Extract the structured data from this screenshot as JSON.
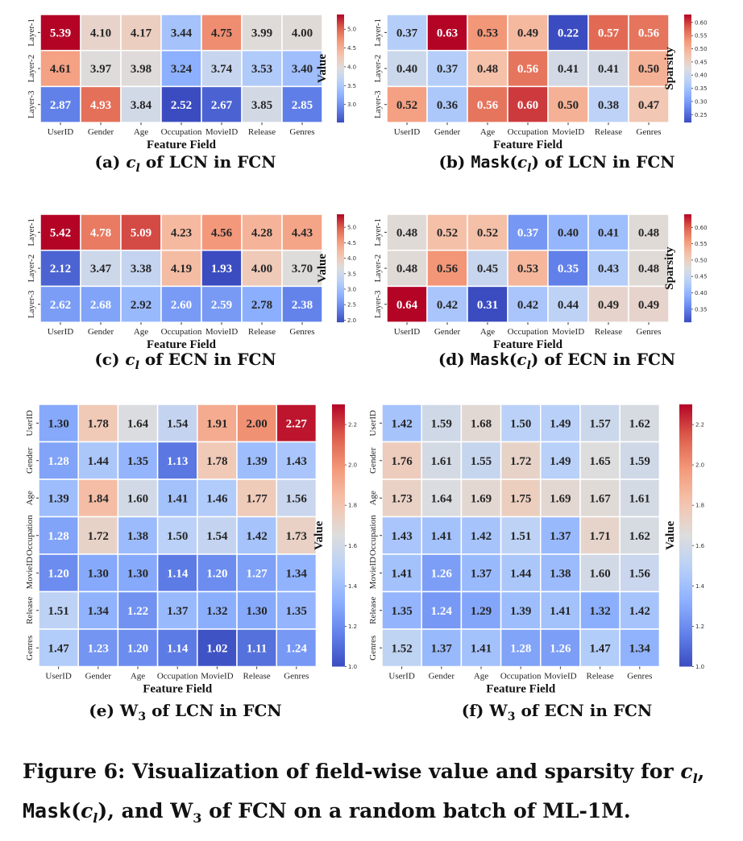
{
  "chart_data": [
    {
      "id": "a",
      "type": "heatmap",
      "caption": {
        "label": "(a)",
        "symbol": "c",
        "subscript": "l",
        "text": "of LCN in FCN"
      },
      "xlabel": "Feature Field",
      "ylabel": "",
      "colorbar_label": "Value",
      "colormap": "coolwarm",
      "vmin": 2.52,
      "vmax": 5.39,
      "colorbar_ticks": [
        "3.0",
        "3.5",
        "4.0",
        "4.5",
        "5.0"
      ],
      "x_categories": [
        "UserID",
        "Gender",
        "Age",
        "Occupation",
        "MovieID",
        "Release",
        "Genres"
      ],
      "y_categories": [
        "Layer-1",
        "Layer-2",
        "Layer-3"
      ],
      "values": [
        [
          5.39,
          4.1,
          4.17,
          3.44,
          4.75,
          3.99,
          4.0
        ],
        [
          4.61,
          3.97,
          3.98,
          3.24,
          3.74,
          3.53,
          3.4
        ],
        [
          2.87,
          4.93,
          3.84,
          2.52,
          2.67,
          3.85,
          2.85
        ]
      ]
    },
    {
      "id": "b",
      "type": "heatmap",
      "caption": {
        "label": "(b)",
        "func": "Mask",
        "symbol": "c",
        "subscript": "l",
        "text": "of LCN in FCN"
      },
      "xlabel": "Feature Field",
      "ylabel": "",
      "colorbar_label": "Sparsity",
      "colormap": "coolwarm",
      "vmin": 0.22,
      "vmax": 0.63,
      "colorbar_ticks": [
        "0.25",
        "0.30",
        "0.35",
        "0.40",
        "0.45",
        "0.50",
        "0.55",
        "0.60"
      ],
      "x_categories": [
        "UserID",
        "Gender",
        "Age",
        "Occupation",
        "MovieID",
        "Release",
        "Genres"
      ],
      "y_categories": [
        "Layer-1",
        "Layer-2",
        "Layer-3"
      ],
      "values": [
        [
          0.37,
          0.63,
          0.53,
          0.49,
          0.22,
          0.57,
          0.56
        ],
        [
          0.4,
          0.37,
          0.48,
          0.56,
          0.41,
          0.41,
          0.5
        ],
        [
          0.52,
          0.36,
          0.56,
          0.6,
          0.5,
          0.38,
          0.47
        ]
      ]
    },
    {
      "id": "c",
      "type": "heatmap",
      "caption": {
        "label": "(c)",
        "symbol": "c",
        "subscript": "l",
        "text": "of ECN in FCN"
      },
      "xlabel": "Feature Field",
      "ylabel": "",
      "colorbar_label": "Value",
      "colormap": "coolwarm",
      "vmin": 1.93,
      "vmax": 5.42,
      "colorbar_ticks": [
        "2.0",
        "2.5",
        "3.0",
        "3.5",
        "4.0",
        "4.5",
        "5.0"
      ],
      "x_categories": [
        "UserID",
        "Gender",
        "Age",
        "Occupation",
        "MovieID",
        "Release",
        "Genres"
      ],
      "y_categories": [
        "Layer-1",
        "Layer-2",
        "Layer-3"
      ],
      "values": [
        [
          5.42,
          4.78,
          5.09,
          4.23,
          4.56,
          4.28,
          4.43
        ],
        [
          2.12,
          3.47,
          3.38,
          4.19,
          1.93,
          4.0,
          3.7
        ],
        [
          2.62,
          2.68,
          2.92,
          2.6,
          2.59,
          2.78,
          2.38
        ]
      ]
    },
    {
      "id": "d",
      "type": "heatmap",
      "caption": {
        "label": "(d)",
        "func": "Mask",
        "symbol": "c",
        "subscript": "l",
        "text": "of ECN in FCN"
      },
      "xlabel": "Feature Field",
      "ylabel": "",
      "colorbar_label": "Sparsity",
      "colormap": "coolwarm",
      "vmin": 0.31,
      "vmax": 0.64,
      "colorbar_ticks": [
        "0.35",
        "0.40",
        "0.45",
        "0.50",
        "0.55",
        "0.60"
      ],
      "x_categories": [
        "UserID",
        "Gender",
        "Age",
        "Occupation",
        "MovieID",
        "Release",
        "Genres"
      ],
      "y_categories": [
        "Layer-1",
        "Layer-2",
        "Layer-3"
      ],
      "values": [
        [
          0.48,
          0.52,
          0.52,
          0.37,
          0.4,
          0.41,
          0.48
        ],
        [
          0.48,
          0.56,
          0.45,
          0.53,
          0.35,
          0.43,
          0.48
        ],
        [
          0.64,
          0.42,
          0.31,
          0.42,
          0.44,
          0.49,
          0.49
        ]
      ]
    },
    {
      "id": "e",
      "type": "heatmap",
      "caption": {
        "label": "(e)",
        "symbol": "W",
        "subscript": "3",
        "text": "of LCN in FCN"
      },
      "xlabel": "Feature Field",
      "ylabel": "",
      "colorbar_label": "Value",
      "colormap": "coolwarm",
      "vmin": 1.0,
      "vmax": 2.3,
      "colorbar_ticks": [
        "1.0",
        "1.2",
        "1.4",
        "1.6",
        "1.8",
        "2.0",
        "2.2"
      ],
      "x_categories": [
        "UserID",
        "Gender",
        "Age",
        "Occupation",
        "MovieID",
        "Release",
        "Genres"
      ],
      "y_categories": [
        "UserID",
        "Gender",
        "Age",
        "Occupation",
        "MovieID",
        "Release",
        "Genres"
      ],
      "values": [
        [
          1.3,
          1.78,
          1.64,
          1.54,
          1.91,
          2.0,
          2.27
        ],
        [
          1.28,
          1.44,
          1.35,
          1.13,
          1.78,
          1.39,
          1.43
        ],
        [
          1.39,
          1.84,
          1.6,
          1.41,
          1.46,
          1.77,
          1.56
        ],
        [
          1.28,
          1.72,
          1.38,
          1.5,
          1.54,
          1.42,
          1.73
        ],
        [
          1.2,
          1.3,
          1.3,
          1.14,
          1.2,
          1.27,
          1.34
        ],
        [
          1.51,
          1.34,
          1.22,
          1.37,
          1.32,
          1.3,
          1.35
        ],
        [
          1.47,
          1.23,
          1.2,
          1.14,
          1.02,
          1.11,
          1.24
        ]
      ]
    },
    {
      "id": "f",
      "type": "heatmap",
      "caption": {
        "label": "(f)",
        "symbol": "W",
        "subscript": "3",
        "text": "of ECN in FCN"
      },
      "xlabel": "Feature Field",
      "ylabel": "",
      "colorbar_label": "Value",
      "colormap": "coolwarm",
      "vmin": 1.0,
      "vmax": 2.3,
      "colorbar_ticks": [
        "1.0",
        "1.2",
        "1.4",
        "1.6",
        "1.8",
        "2.0",
        "2.2"
      ],
      "x_categories": [
        "UserID",
        "Gender",
        "Age",
        "Occupation",
        "MovieID",
        "Release",
        "Genres"
      ],
      "y_categories": [
        "UserID",
        "Gender",
        "Age",
        "Occupation",
        "MovieID",
        "Release",
        "Genres"
      ],
      "values": [
        [
          1.42,
          1.59,
          1.68,
          1.5,
          1.49,
          1.57,
          1.62
        ],
        [
          1.76,
          1.61,
          1.55,
          1.72,
          1.49,
          1.65,
          1.59
        ],
        [
          1.73,
          1.64,
          1.69,
          1.75,
          1.69,
          1.67,
          1.61
        ],
        [
          1.43,
          1.41,
          1.42,
          1.51,
          1.37,
          1.71,
          1.62
        ],
        [
          1.41,
          1.26,
          1.37,
          1.44,
          1.38,
          1.6,
          1.56
        ],
        [
          1.35,
          1.24,
          1.29,
          1.39,
          1.41,
          1.32,
          1.42
        ],
        [
          1.52,
          1.37,
          1.41,
          1.28,
          1.26,
          1.47,
          1.34
        ]
      ]
    }
  ],
  "figure_caption": {
    "prefix": "Figure 6: Visualization of field-wise value and sparsity for ",
    "c_symbol": "c",
    "c_sub": "l",
    "sep1": ",",
    "mask_func": "Mask",
    "mid": ", and ",
    "w_symbol": "W",
    "w_sub": "3",
    "suffix": " of FCN on a random batch of ML-1M."
  },
  "colors": {
    "cmap_low": "#3b4cc0",
    "cmap_mid": "#dddddd",
    "cmap_high": "#b40426",
    "text_dark": "#262626",
    "text_light": "#ffffff",
    "cell_border": "#ffffff"
  }
}
